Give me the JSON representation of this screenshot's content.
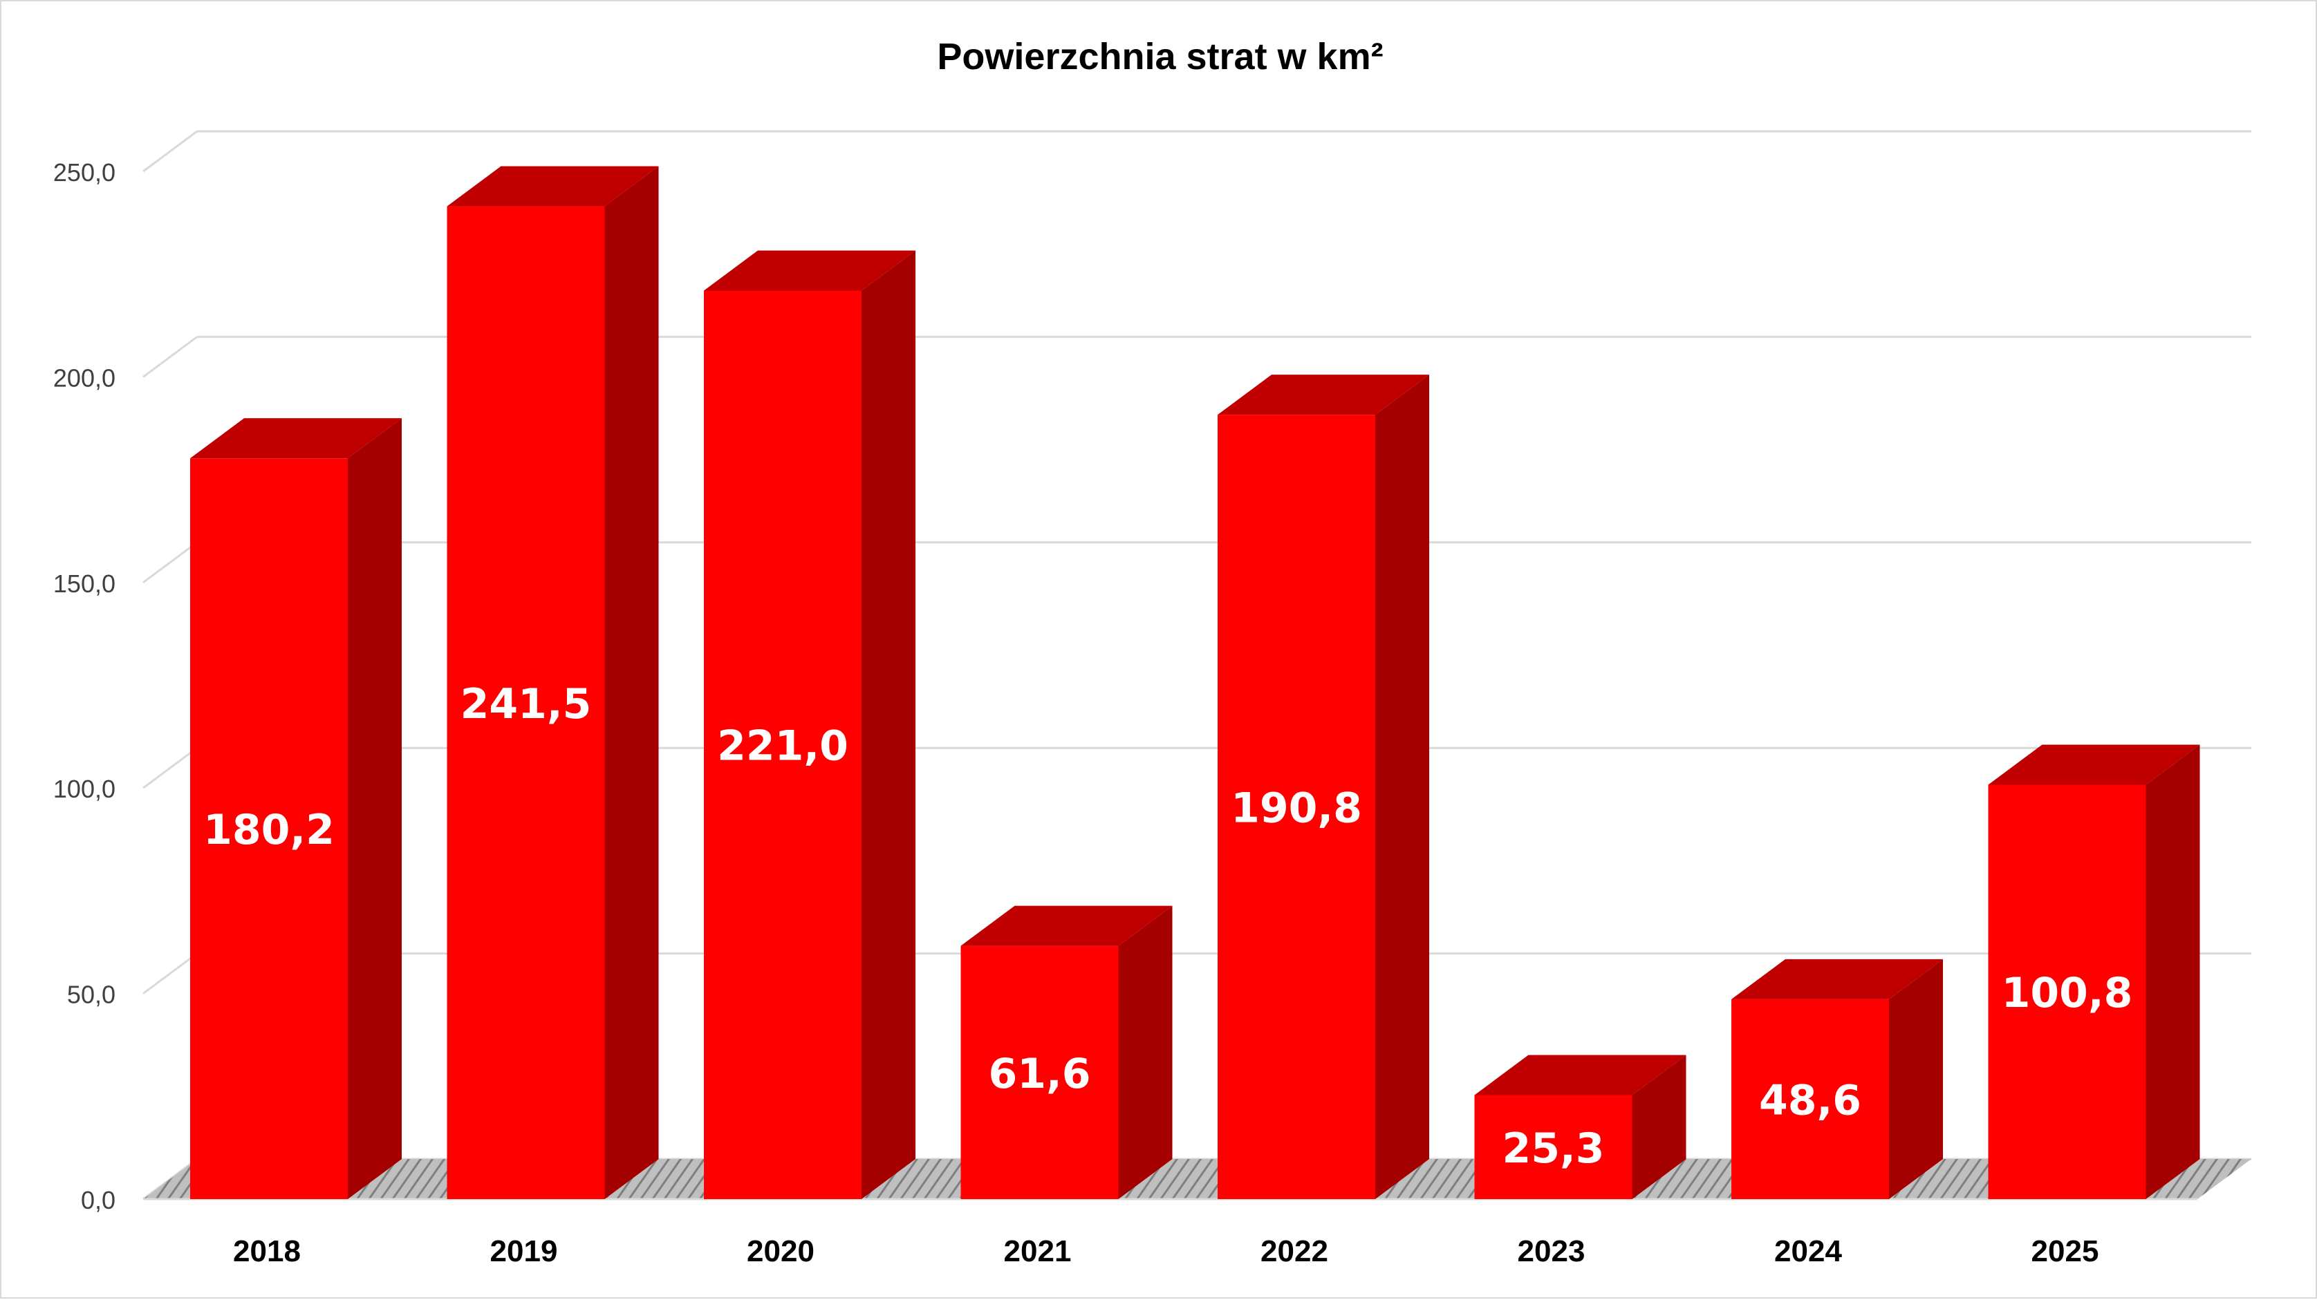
{
  "chart_data": {
    "type": "bar",
    "title": "Powierzchnia strat w km²",
    "xlabel": "",
    "ylabel": "",
    "categories": [
      "2018",
      "2019",
      "2020",
      "2021",
      "2022",
      "2023",
      "2024",
      "2025"
    ],
    "values": [
      180.2,
      241.5,
      221.0,
      61.6,
      190.8,
      25.3,
      48.6,
      100.8
    ],
    "value_labels": [
      "180,2",
      "241,5",
      "221,0",
      "61,6",
      "190,8",
      "25,3",
      "48,6",
      "100,8"
    ],
    "ylim": [
      0,
      250
    ],
    "yticks": [
      0,
      50,
      100,
      150,
      200,
      250
    ],
    "ytick_labels": [
      "0,0",
      "50,0",
      "100,0",
      "150,0",
      "200,0",
      "250,0"
    ],
    "grid": true,
    "legend": "none",
    "style": "3d-column"
  },
  "colors": {
    "bar_front": "#ff0000",
    "bar_top": "#c00000",
    "bar_side": "#a50000",
    "gridline": "#d9d9d9",
    "floor": "#a6a6a6",
    "value_label": "#ffffff",
    "text": "#000000",
    "tick_text": "#404040"
  }
}
